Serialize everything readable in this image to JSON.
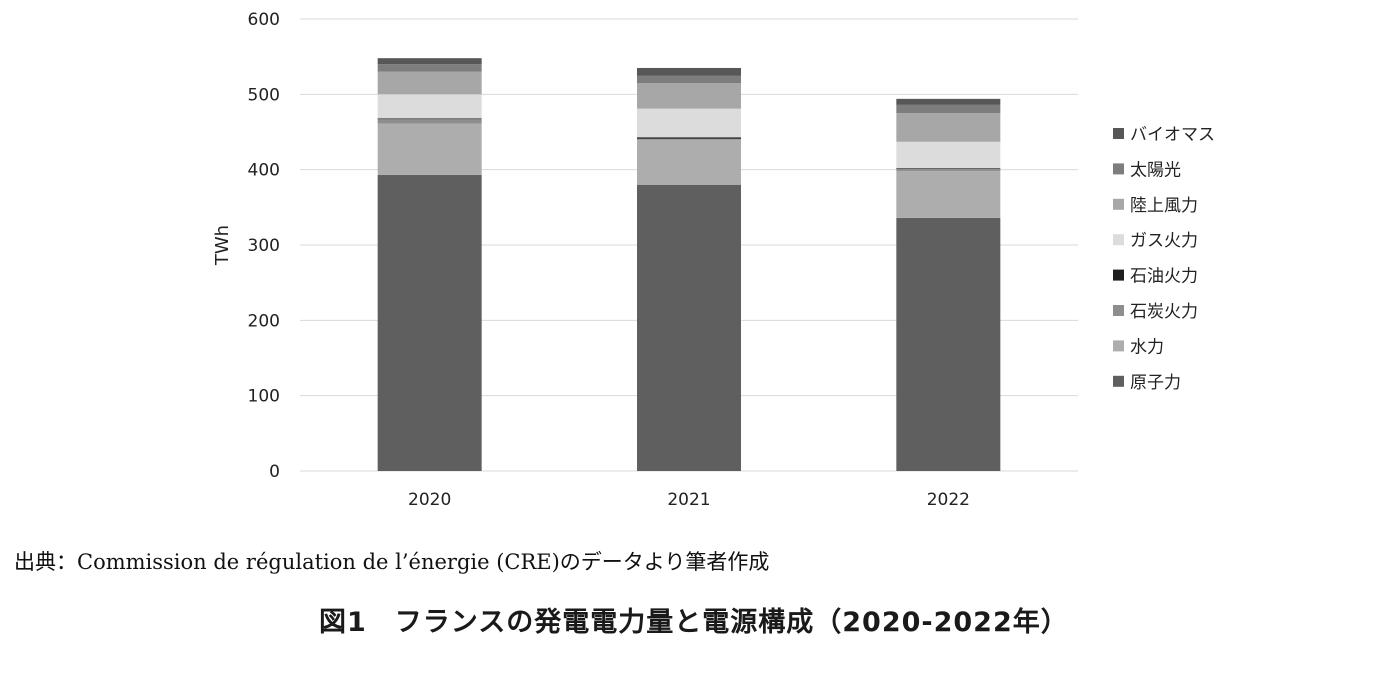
{
  "chart_data": {
    "type": "bar",
    "stacked": true,
    "categories": [
      "2020",
      "2021",
      "2022"
    ],
    "ylabel": "TWh",
    "ylim": [
      0,
      600
    ],
    "yticks": [
      "0",
      "100",
      "200",
      "300",
      "400",
      "500",
      "600"
    ],
    "grid": true,
    "legend_position": "right",
    "series": [
      {
        "name": "原子力",
        "color": "#5f5f5f",
        "values": [
          393,
          380,
          336
        ]
      },
      {
        "name": "水力",
        "color": "#adadad",
        "values": [
          68,
          60,
          62
        ]
      },
      {
        "name": "石炭火力",
        "color": "#8e8e8e",
        "values": [
          6,
          1,
          3
        ]
      },
      {
        "name": "石油火力",
        "color": "#1e1e1e",
        "values": [
          1,
          2,
          1
        ]
      },
      {
        "name": "ガス火力",
        "color": "#dcdcdc",
        "values": [
          32,
          38,
          35
        ]
      },
      {
        "name": "陸上風力",
        "color": "#a7a7a7",
        "values": [
          30,
          34,
          38
        ]
      },
      {
        "name": "太陽光",
        "color": "#7d7d7d",
        "values": [
          10,
          10,
          11
        ]
      },
      {
        "name": "バイオマス",
        "color": "#575757",
        "values": [
          8,
          10,
          8
        ]
      }
    ]
  },
  "source_note": "出典：Commission de régulation de l’énergie (CRE)のデータより筆者作成",
  "caption": "図1　フランスの発電電力量と電源構成（2020-2022年）"
}
